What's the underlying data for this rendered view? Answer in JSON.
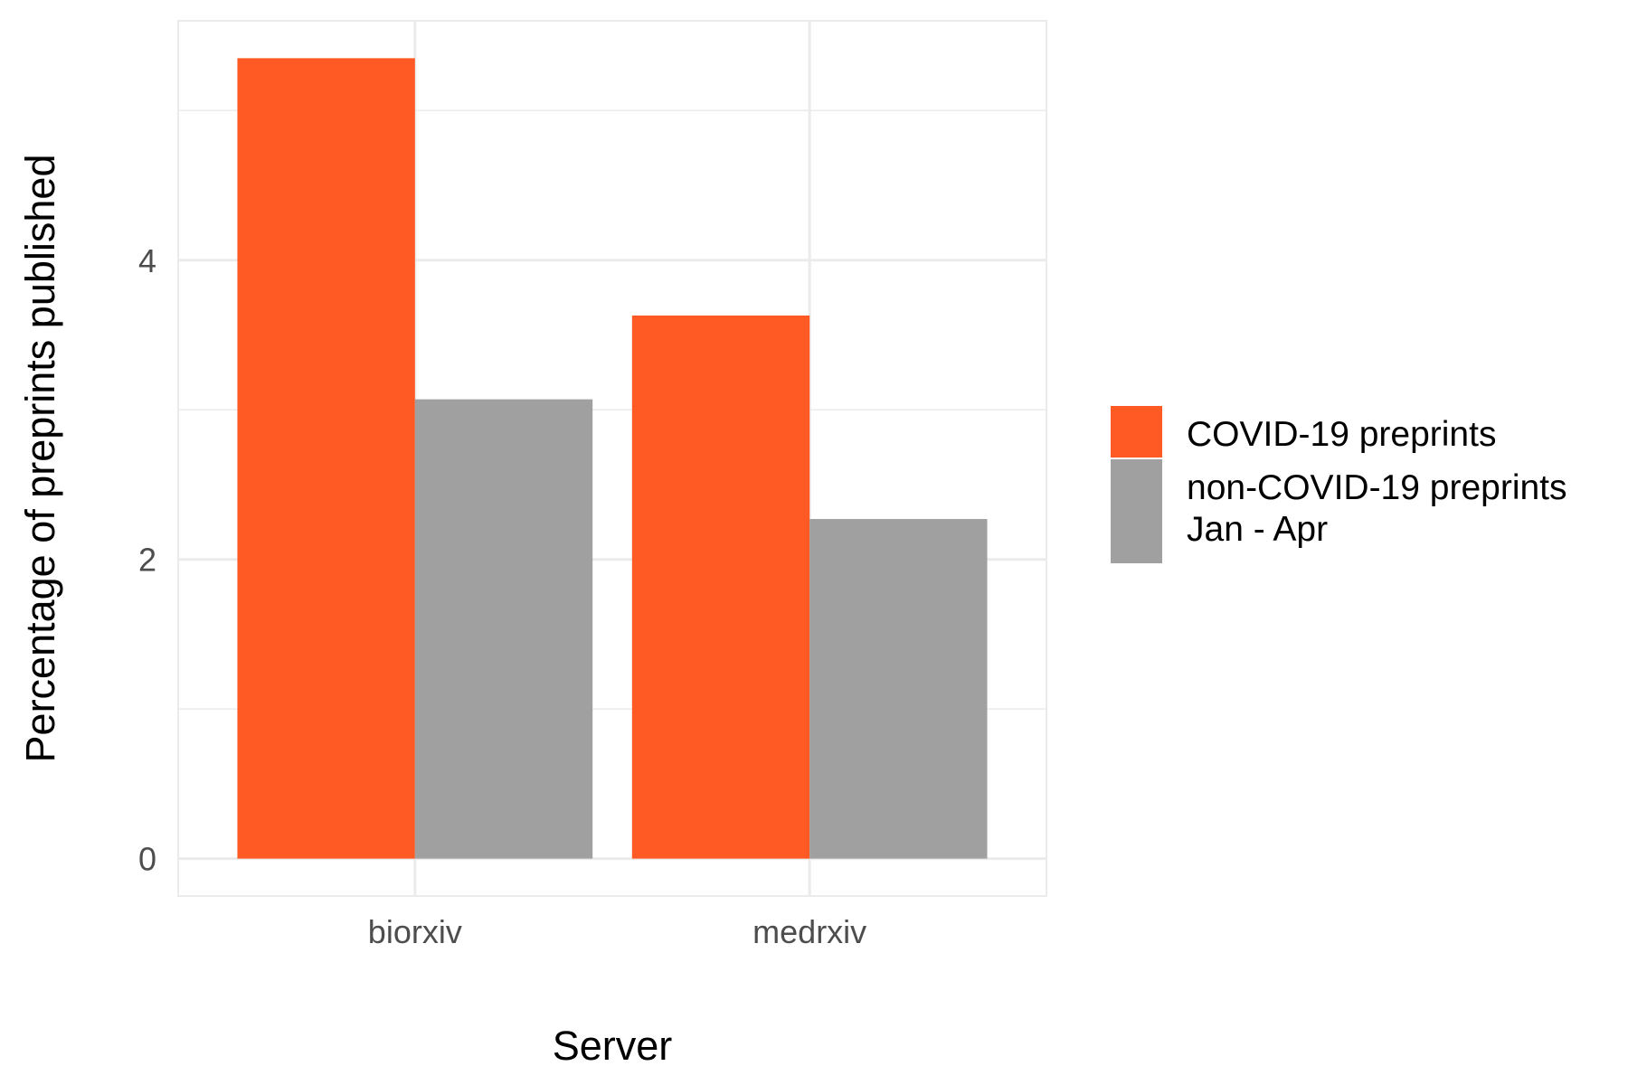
{
  "chart_data": {
    "type": "bar",
    "categories": [
      "biorxiv",
      "medrxiv"
    ],
    "series": [
      {
        "name": "COVID-19 preprints",
        "values": [
          5.35,
          3.63
        ],
        "color": "#FF5A24"
      },
      {
        "name": "non-COVID-19 preprints\nJan - Apr",
        "values": [
          3.07,
          2.27
        ],
        "color": "#A0A0A0"
      }
    ],
    "xlabel": "Server",
    "ylabel": "Percentage of preprints published",
    "ylim": [
      -0.25,
      5.6
    ],
    "yticks": [
      0,
      2,
      4
    ],
    "grid": true,
    "legend_position": "right"
  }
}
